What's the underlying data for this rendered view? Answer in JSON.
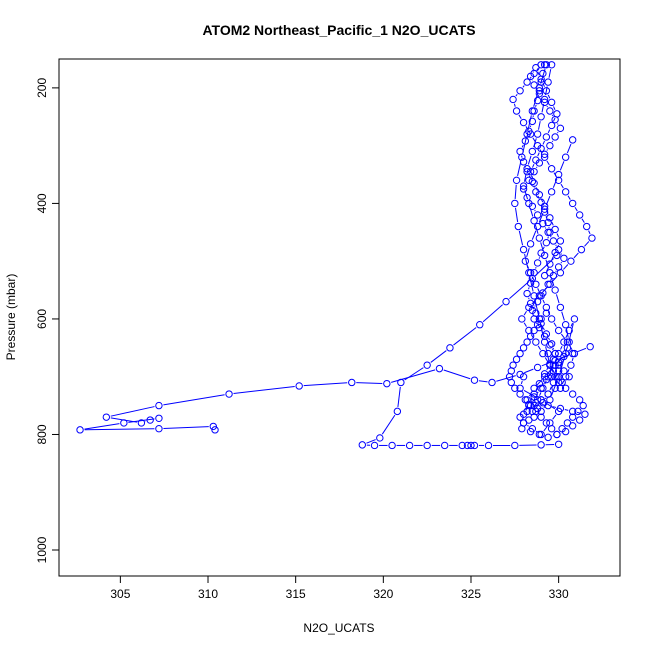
{
  "chart_data": {
    "type": "scatter",
    "title": "ATOM2 Northeast_Pacific_1 N2O_UCATS",
    "xlabel": "N2O_UCATS",
    "ylabel": "Pressure (mbar)",
    "xlim": [
      301.5,
      333.5
    ],
    "ylim": [
      1045,
      150
    ],
    "y_reversed": true,
    "x_ticks": [
      305,
      310,
      315,
      320,
      325,
      330
    ],
    "y_ticks": [
      200,
      400,
      600,
      800,
      1000
    ],
    "grid": false,
    "series_color": "#0000ff",
    "series": [
      {
        "x": [
          329.2,
          329.1,
          329.0,
          328.9,
          328.8,
          328.6,
          328.5,
          328.3,
          328.1,
          327.8,
          328.0,
          328.2,
          328.5,
          328.7,
          329.0,
          329.2,
          329.4,
          329.5,
          329.3,
          329.0,
          328.8,
          328.6,
          328.4,
          328.2,
          328.4,
          328.7,
          329.0,
          329.3,
          329.6,
          329.8,
          329.5,
          329.2,
          328.9,
          328.6,
          328.3,
          328.0,
          328.3,
          328.6,
          329.0,
          329.3,
          329.7,
          330.0,
          329.8,
          329.5,
          329.2,
          328.9,
          328.6,
          328.5,
          328.8,
          329.1,
          329.4,
          329.7,
          330.0,
          330.3,
          330.0,
          329.7,
          329.4,
          329.1,
          328.8,
          328.5,
          328.2,
          328.0,
          328.3,
          328.6,
          328.9,
          329.2,
          329.5,
          329.8,
          330.1,
          329.8,
          329.5,
          329.2,
          328.9,
          328.6,
          328.4,
          328.7,
          329.0,
          329.3,
          329.6,
          329.9,
          329.6,
          329.3,
          329.0,
          328.7,
          328.4,
          328.6,
          328.9,
          329.2,
          329.5,
          329.8,
          330.1,
          329.8,
          329.5,
          329.2
        ],
        "y": [
          160,
          175,
          190,
          205,
          222,
          240,
          258,
          275,
          292,
          310,
          328,
          345,
          362,
          380,
          398,
          415,
          433,
          450,
          468,
          486,
          503,
          520,
          538,
          556,
          573,
          590,
          608,
          626,
          643,
          660,
          678,
          695,
          712,
          730,
          748,
          765,
          750,
          735,
          720,
          705,
          690,
          675,
          660,
          645,
          630,
          615,
          600,
          585,
          570,
          555,
          540,
          525,
          510,
          495,
          480,
          465,
          450,
          435,
          420,
          405,
          390,
          375,
          360,
          345,
          330,
          315,
          300,
          285,
          270,
          255,
          240,
          225,
          210,
          195,
          180,
          165,
          185,
          205,
          225,
          245,
          265,
          285,
          305,
          325,
          345,
          365,
          385,
          405,
          425,
          445,
          465,
          485,
          505,
          525
        ]
      },
      {
        "x": [
          329.6,
          329.4,
          329.2,
          329.0,
          328.8,
          328.5,
          328.2,
          328.0,
          328.3,
          328.6,
          328.9,
          329.2,
          329.5,
          329.8,
          330.1,
          330.4,
          330.6,
          330.3,
          330.0,
          329.7,
          329.4,
          329.1,
          328.8,
          328.5,
          328.8,
          329.1,
          329.4,
          329.7,
          330.0,
          330.3,
          330.6,
          330.9,
          330.5,
          330.0,
          329.5,
          329.0,
          328.6,
          328.3,
          328.0,
          327.9,
          328.4,
          328.9,
          329.4,
          329.9,
          330.4,
          330.8,
          331.2,
          331.5,
          330.8,
          330.1,
          329.4,
          328.7,
          328.2,
          328.6,
          329.2,
          329.8,
          330.4
        ],
        "y": [
          160,
          190,
          220,
          250,
          280,
          310,
          340,
          370,
          400,
          430,
          460,
          490,
          520,
          550,
          580,
          610,
          640,
          665,
          690,
          710,
          730,
          745,
          755,
          760,
          740,
          720,
          700,
          680,
          660,
          640,
          620,
          600,
          650,
          700,
          740,
          760,
          770,
          775,
          780,
          790,
          795,
          800,
          805,
          800,
          795,
          785,
          775,
          765,
          760,
          755,
          750,
          745,
          740,
          720,
          700,
          680,
          660
        ]
      },
      {
        "x": [
          329.3,
          328.9,
          328.5,
          328.2,
          327.9,
          327.6,
          327.5,
          327.7,
          328.0,
          328.3,
          328.6,
          328.9,
          329.2,
          329.5,
          329.8,
          330.1,
          330.4,
          330.7,
          330.9,
          330.5,
          330.0,
          329.6,
          329.3,
          329.0,
          328.7,
          328.4,
          328.1,
          328.4,
          328.8,
          329.2,
          329.6,
          330.0,
          330.4,
          330.8
        ],
        "y": [
          160,
          200,
          240,
          280,
          320,
          360,
          400,
          440,
          480,
          520,
          560,
          600,
          640,
          680,
          700,
          720,
          700,
          680,
          660,
          640,
          620,
          600,
          580,
          560,
          540,
          520,
          500,
          470,
          440,
          410,
          380,
          350,
          320,
          290
        ]
      },
      {
        "x": [
          329.0,
          328.6,
          328.2,
          327.8,
          327.4,
          327.6,
          328.0,
          328.4,
          328.8,
          329.2,
          329.6,
          330.0,
          330.4,
          330.8,
          331.2,
          331.6,
          331.9,
          331.3,
          330.7,
          330.1,
          329.5,
          328.9,
          328.3,
          327.9,
          328.3,
          328.7,
          329.1,
          329.5,
          329.9
        ],
        "y": [
          160,
          175,
          190,
          205,
          220,
          240,
          260,
          280,
          300,
          320,
          340,
          360,
          380,
          400,
          420,
          440,
          460,
          480,
          500,
          520,
          540,
          560,
          580,
          600,
          620,
          640,
          660,
          680,
          700
        ]
      },
      {
        "x": [
          331.8,
          330.8,
          329.8,
          328.8,
          327.8,
          326.2,
          325.2,
          323.2,
          320.2,
          318.2,
          315.2,
          311.2,
          307.2,
          304.2,
          306.2,
          306.7,
          307.2,
          305.2,
          302.7,
          307.2,
          310.3,
          310.4
        ],
        "y": [
          648,
          660,
          672,
          684,
          696,
          710,
          706,
          686,
          712,
          710,
          716,
          730,
          750,
          770,
          780,
          775,
          772,
          780,
          792,
          790,
          786,
          792
        ]
      },
      {
        "x": [
          329.9,
          328.5,
          327.0,
          325.5,
          323.8,
          322.5,
          321.0,
          320.8,
          319.8,
          318.8,
          319.5,
          320.5,
          321.5,
          322.5,
          323.5,
          324.5,
          324.8,
          325.0,
          325.2,
          326.0,
          327.5,
          329.0,
          330.0
        ],
        "y": [
          490,
          530,
          570,
          610,
          650,
          680,
          710,
          760,
          806,
          818,
          819,
          819,
          819,
          819,
          819,
          819,
          819,
          819,
          819,
          819,
          819,
          818,
          817
        ]
      },
      {
        "x": [
          329.3,
          329.0,
          328.8,
          328.6,
          328.4,
          328.2,
          328.0,
          327.8,
          327.6,
          327.4,
          327.3,
          327.2,
          327.3,
          327.5,
          327.8,
          328.1,
          328.4,
          328.7,
          329.0,
          329.3,
          329.6,
          329.9,
          330.2,
          330.5,
          330.8,
          331.1,
          331.4,
          331.2,
          330.8,
          330.4,
          330.0,
          329.6
        ],
        "y": [
          590,
          600,
          610,
          620,
          630,
          640,
          650,
          660,
          670,
          680,
          690,
          700,
          710,
          720,
          730,
          740,
          750,
          760,
          770,
          780,
          790,
          800,
          790,
          780,
          770,
          760,
          750,
          740,
          730,
          720,
          710,
          700
        ]
      },
      {
        "x": [
          328.0,
          327.8,
          329.0,
          330.0,
          329.5,
          329.0,
          328.5,
          328.0,
          327.8,
          328.2,
          328.6,
          329.0,
          329.4,
          329.8,
          330.2,
          330.6,
          330.3,
          330.0,
          329.7,
          329.4
        ],
        "y": [
          700,
          720,
          740,
          760,
          780,
          800,
          790,
          780,
          770,
          760,
          750,
          740,
          730,
          720,
          710,
          700,
          690,
          680,
          670,
          660
        ]
      }
    ]
  }
}
